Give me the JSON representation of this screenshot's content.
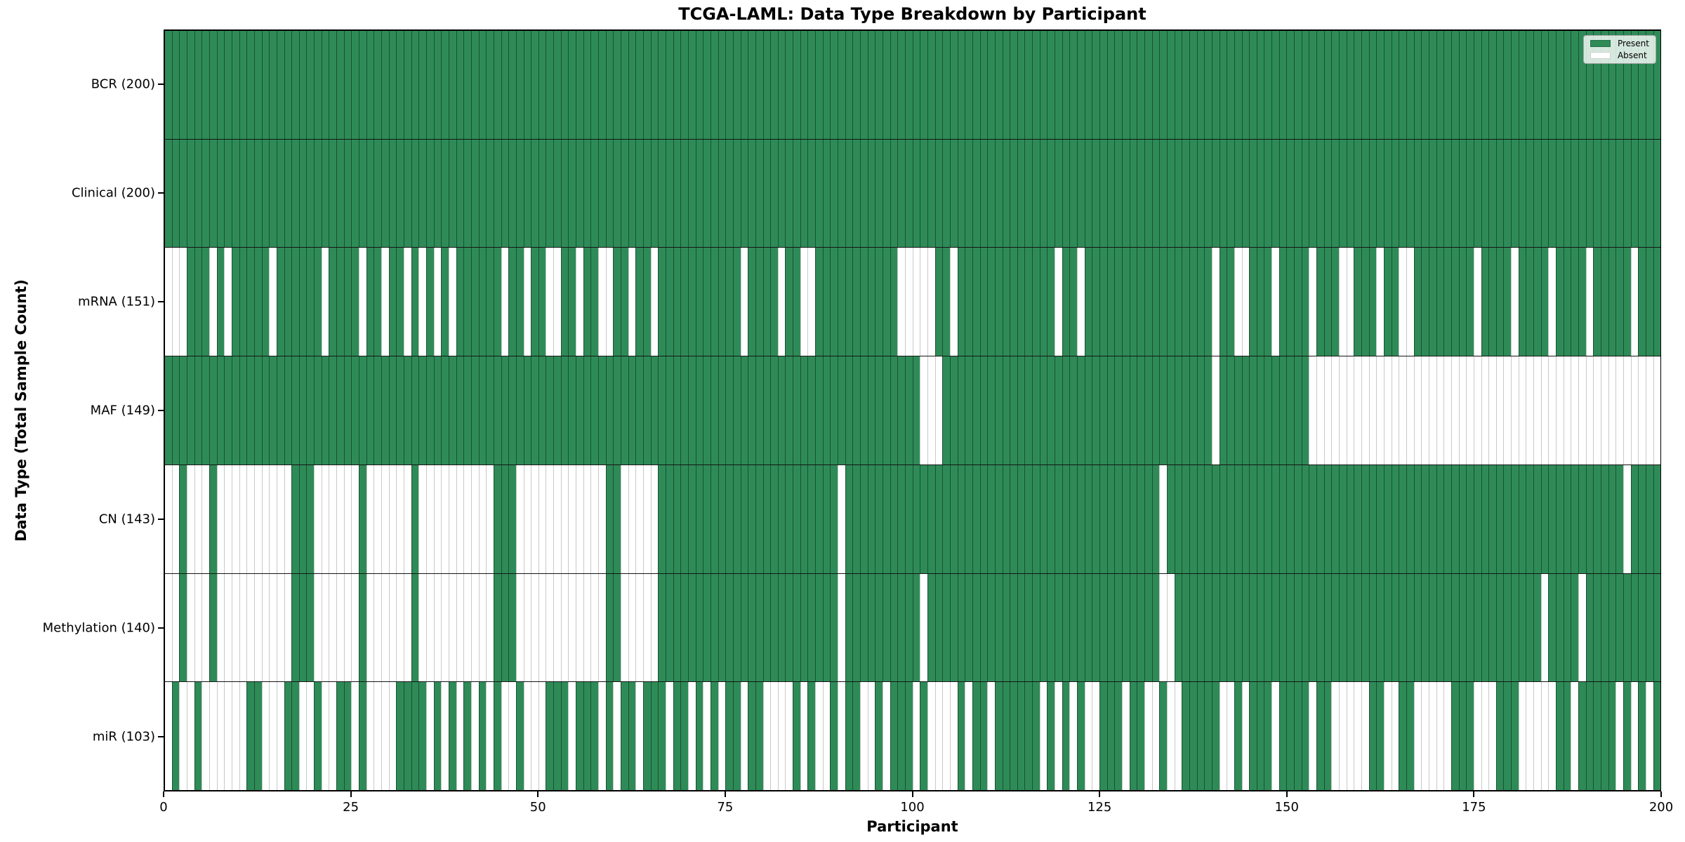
{
  "title": "TCGA-LAML: Data Type Breakdown by Participant",
  "xlabel": "Participant",
  "ylabel": "Data Type (Total Sample Count)",
  "colors": {
    "present": "#2e8b57",
    "absent": "#ffffff"
  },
  "chart_data": {
    "type": "heatmap",
    "title": "TCGA-LAML: Data Type Breakdown by Participant",
    "xlabel": "Participant",
    "ylabel": "Data Type (Total Sample Count)",
    "n_participants": 200,
    "x_axis": {
      "ticks": [
        0,
        25,
        50,
        75,
        100,
        125,
        150,
        175,
        200
      ],
      "range": [
        0,
        200
      ]
    },
    "legend": [
      {
        "label": "Present",
        "color": "#2e8b57"
      },
      {
        "label": "Absent",
        "color": "#ffffff"
      }
    ],
    "legend_position": "upper right",
    "cell_encoding": "1 = data type present for participant (green), 0 = absent (white); absent_participants lists the 0 cells",
    "rows": [
      {
        "data_type": "BCR",
        "label": "BCR (200)",
        "present_count": 200,
        "absent_participants": []
      },
      {
        "data_type": "Clinical",
        "label": "Clinical (200)",
        "present_count": 200,
        "absent_participants": []
      },
      {
        "data_type": "mRNA",
        "label": "mRNA (151)",
        "present_count": 151,
        "absent_participants": [
          0,
          1,
          2,
          6,
          8,
          14,
          21,
          26,
          29,
          32,
          34,
          36,
          38,
          45,
          48,
          51,
          52,
          55,
          58,
          59,
          62,
          65,
          77,
          82,
          85,
          86,
          98,
          99,
          100,
          101,
          102,
          105,
          119,
          122,
          140,
          143,
          144,
          148,
          153,
          157,
          158,
          162,
          165,
          166,
          175,
          180,
          185,
          190,
          196
        ]
      },
      {
        "data_type": "MAF",
        "label": "MAF (149)",
        "present_count": 149,
        "absent_participants": [
          101,
          102,
          103,
          140,
          153,
          154,
          155,
          156,
          157,
          158,
          159,
          160,
          161,
          162,
          163,
          164,
          165,
          166,
          167,
          168,
          169,
          170,
          171,
          172,
          173,
          174,
          175,
          176,
          177,
          178,
          179,
          180,
          181,
          182,
          183,
          184,
          185,
          186,
          187,
          188,
          189,
          190,
          191,
          192,
          193,
          194,
          195,
          196,
          197,
          198,
          199
        ]
      },
      {
        "data_type": "CN",
        "label": "CN (143)",
        "present_count": 143,
        "absent_participants": [
          0,
          1,
          3,
          4,
          5,
          7,
          8,
          9,
          10,
          11,
          12,
          13,
          14,
          15,
          16,
          20,
          21,
          22,
          23,
          24,
          25,
          27,
          28,
          29,
          30,
          31,
          32,
          34,
          35,
          36,
          37,
          38,
          39,
          40,
          41,
          42,
          43,
          47,
          48,
          49,
          50,
          51,
          52,
          53,
          54,
          55,
          56,
          57,
          58,
          61,
          62,
          63,
          64,
          65,
          90,
          133,
          195
        ]
      },
      {
        "data_type": "Methylation",
        "label": "Methylation (140)",
        "present_count": 140,
        "absent_participants": [
          0,
          1,
          3,
          4,
          5,
          7,
          8,
          9,
          10,
          11,
          12,
          13,
          14,
          15,
          16,
          20,
          21,
          22,
          23,
          24,
          25,
          27,
          28,
          29,
          30,
          31,
          32,
          34,
          35,
          36,
          37,
          38,
          39,
          40,
          41,
          42,
          43,
          47,
          48,
          49,
          50,
          51,
          52,
          53,
          54,
          55,
          56,
          57,
          58,
          61,
          62,
          63,
          64,
          65,
          90,
          101,
          133,
          134,
          184,
          189
        ]
      },
      {
        "data_type": "miR",
        "label": "miR (103)",
        "present_count": 103,
        "absent_participants": [
          0,
          2,
          3,
          5,
          6,
          7,
          8,
          9,
          10,
          13,
          14,
          15,
          18,
          19,
          21,
          22,
          25,
          27,
          28,
          29,
          30,
          35,
          37,
          39,
          41,
          43,
          45,
          46,
          48,
          49,
          50,
          54,
          58,
          60,
          63,
          67,
          70,
          72,
          74,
          77,
          80,
          81,
          82,
          83,
          85,
          87,
          88,
          90,
          93,
          94,
          96,
          100,
          102,
          103,
          104,
          105,
          107,
          110,
          117,
          119,
          121,
          123,
          124,
          128,
          131,
          132,
          134,
          135,
          141,
          142,
          144,
          148,
          153,
          156,
          157,
          158,
          159,
          160,
          163,
          164,
          167,
          168,
          169,
          170,
          171,
          175,
          176,
          177,
          181,
          182,
          183,
          184,
          185,
          188,
          194,
          196,
          198
        ]
      }
    ]
  }
}
